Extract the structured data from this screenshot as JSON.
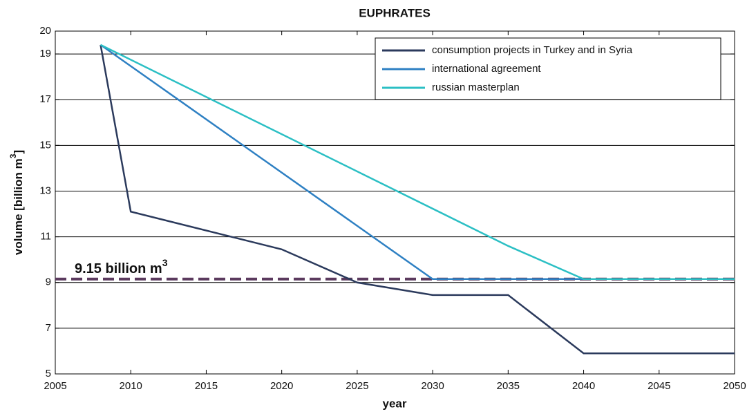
{
  "chart_data": {
    "type": "line",
    "title": "EUPHRATES",
    "xlabel": "year",
    "ylabel": [
      "volume [billion m",
      "3",
      "]"
    ],
    "xlim": [
      2005,
      2050
    ],
    "xticks": [
      2005,
      2010,
      2015,
      2020,
      2025,
      2030,
      2035,
      2040,
      2045,
      2050
    ],
    "ylim": [
      5,
      20
    ],
    "yticks": [
      5,
      7,
      9,
      11,
      13,
      15,
      17,
      19,
      20
    ],
    "grid": true,
    "legend": "upper right",
    "series": [
      {
        "name": "consumption projects in Turkey and in Syria",
        "color": "#2b3a5c",
        "x": [
          2008,
          2010,
          2020,
          2025,
          2030,
          2035,
          2040,
          2050
        ],
        "values": [
          19.4,
          12.1,
          10.45,
          9.0,
          8.45,
          8.45,
          5.9,
          5.9
        ]
      },
      {
        "name": "international agreement",
        "color": "#2e80c3",
        "x": [
          2008,
          2030,
          2050
        ],
        "values": [
          19.4,
          9.15,
          9.15
        ]
      },
      {
        "name": "russian masterplan",
        "color": "#2bbfc4",
        "x": [
          2008,
          2035,
          2040,
          2050
        ],
        "values": [
          19.4,
          10.6,
          9.15,
          9.15
        ]
      }
    ],
    "reference_line": {
      "value": 9.15,
      "color": "#5b3a5e",
      "label": [
        "9.15 billion m",
        "3"
      ]
    }
  }
}
